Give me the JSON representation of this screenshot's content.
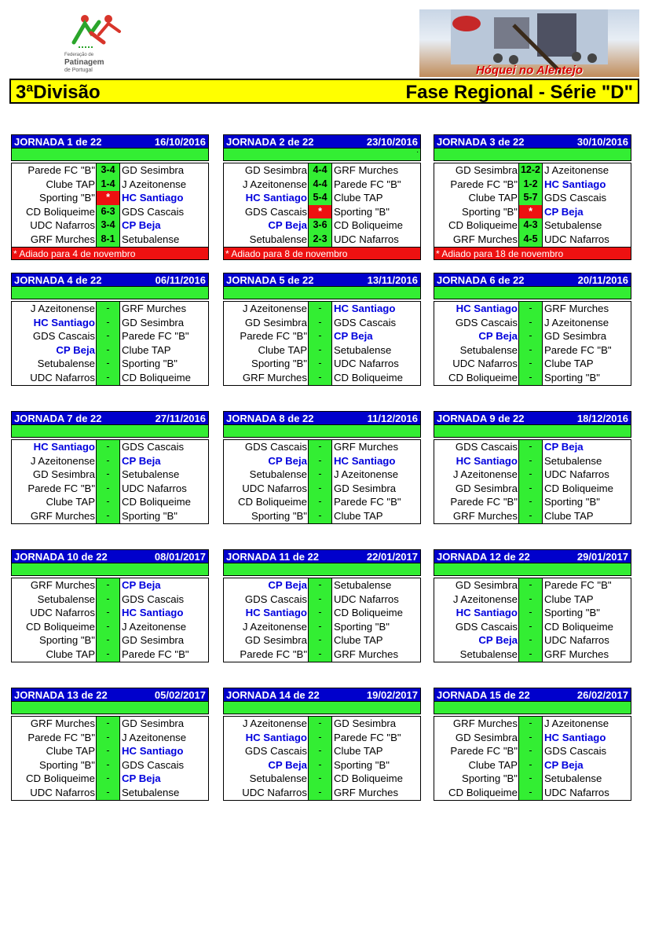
{
  "federation_logo": {
    "line1": "Federação de",
    "line2": "Patinagem",
    "line3": "de Portugal"
  },
  "banner": {
    "title": "Hóquei no Alentejo"
  },
  "title_bar": {
    "left": "3ªDivisão",
    "right": "Fase Regional - Série \"D\""
  },
  "colors": {
    "header_blue": "#0000cc",
    "green": "#33ee33",
    "red": "#ee1111",
    "team_highlight": "#0000dd",
    "title_yellow": "#ffff00"
  },
  "highlight_team": "HC Santiago|CP Beja",
  "rounds": [
    {
      "label": "JORNADA 1 de 22",
      "date": "16/10/2016",
      "note": "* Adiado para 4 de novembro",
      "games": [
        {
          "home": "Parede FC \"B\"",
          "score": "3-4",
          "away": "GD Sesimbra"
        },
        {
          "home": "Clube TAP",
          "score": "1-4",
          "away": "J Azeitonense"
        },
        {
          "home": "Sporting \"B\"",
          "score": "*",
          "away": "HC Santiago"
        },
        {
          "home": "CD Boliqueime",
          "score": "6-3",
          "away": "GDS Cascais"
        },
        {
          "home": "UDC Nafarros",
          "score": "3-4",
          "away": "CP Beja"
        },
        {
          "home": "GRF Murches",
          "score": "8-1",
          "away": "Setubalense"
        }
      ]
    },
    {
      "label": "JORNADA 2 de 22",
      "date": "23/10/2016",
      "note": "* Adiado para 8 de novembro",
      "dot": ".",
      "games": [
        {
          "home": "GD Sesimbra",
          "score": "4-4",
          "away": "GRF Murches"
        },
        {
          "home": "J Azeitonense",
          "score": "4-4",
          "away": "Parede FC \"B\""
        },
        {
          "home": "HC Santiago",
          "score": "5-4",
          "away": "Clube TAP"
        },
        {
          "home": "GDS Cascais",
          "score": "*",
          "away": "Sporting \"B\""
        },
        {
          "home": "CP Beja",
          "score": "3-6",
          "away": "CD Boliqueime"
        },
        {
          "home": "Setubalense",
          "score": "2-3",
          "away": "UDC Nafarros"
        }
      ]
    },
    {
      "label": "JORNADA 3 de 22",
      "date": "30/10/2016",
      "note": "* Adiado para 18 de novembro",
      "games": [
        {
          "home": "GD Sesimbra",
          "score": "12-2",
          "away": "J Azeitonense"
        },
        {
          "home": "Parede FC \"B\"",
          "score": "1-2",
          "away": "HC Santiago"
        },
        {
          "home": "Clube TAP",
          "score": "5-7",
          "away": "GDS Cascais"
        },
        {
          "home": "Sporting \"B\"",
          "score": "*",
          "away": "CP Beja"
        },
        {
          "home": "CD Boliqueime",
          "score": "4-3",
          "away": "Setubalense"
        },
        {
          "home": "GRF Murches",
          "score": "4-5",
          "away": "UDC Nafarros"
        }
      ]
    },
    {
      "label": "JORNADA 4 de 22",
      "date": "06/11/2016",
      "games": [
        {
          "home": "J Azeitonense",
          "score": "-",
          "away": "GRF Murches"
        },
        {
          "home": "HC Santiago",
          "score": "-",
          "away": "GD Sesimbra"
        },
        {
          "home": "GDS Cascais",
          "score": "-",
          "away": "Parede FC \"B\""
        },
        {
          "home": "CP Beja",
          "score": "-",
          "away": "Clube TAP"
        },
        {
          "home": "Setubalense",
          "score": "-",
          "away": "Sporting \"B\""
        },
        {
          "home": "UDC Nafarros",
          "score": "-",
          "away": "CD Boliqueime"
        }
      ]
    },
    {
      "label": "JORNADA 5 de 22",
      "date": "13/11/2016",
      "games": [
        {
          "home": "J Azeitonense",
          "score": "-",
          "away": "HC Santiago"
        },
        {
          "home": "GD Sesimbra",
          "score": "-",
          "away": "GDS Cascais"
        },
        {
          "home": "Parede FC \"B\"",
          "score": "-",
          "away": "CP Beja"
        },
        {
          "home": "Clube TAP",
          "score": "-",
          "away": "Setubalense"
        },
        {
          "home": "Sporting \"B\"",
          "score": "-",
          "away": "UDC Nafarros"
        },
        {
          "home": "GRF Murches",
          "score": "-",
          "away": "CD Boliqueime"
        }
      ]
    },
    {
      "label": "JORNADA 6 de 22",
      "date": "20/11/2016",
      "games": [
        {
          "home": "HC Santiago",
          "score": "-",
          "away": "GRF Murches"
        },
        {
          "home": "GDS Cascais",
          "score": "-",
          "away": "J Azeitonense"
        },
        {
          "home": "CP Beja",
          "score": "-",
          "away": "GD Sesimbra"
        },
        {
          "home": "Setubalense",
          "score": "-",
          "away": "Parede FC \"B\""
        },
        {
          "home": "UDC Nafarros",
          "score": "-",
          "away": "Clube TAP"
        },
        {
          "home": "CD Boliqueime",
          "score": "-",
          "away": "Sporting \"B\""
        }
      ]
    },
    {
      "label": "JORNADA 7 de 22",
      "date": "27/11/2016",
      "games": [
        {
          "home": "HC Santiago",
          "score": "-",
          "away": "GDS Cascais"
        },
        {
          "home": "J Azeitonense",
          "score": "-",
          "away": "CP Beja"
        },
        {
          "home": "GD Sesimbra",
          "score": "-",
          "away": "Setubalense"
        },
        {
          "home": "Parede FC \"B\"",
          "score": "-",
          "away": "UDC Nafarros"
        },
        {
          "home": "Clube TAP",
          "score": "-",
          "away": "CD Boliqueime"
        },
        {
          "home": "GRF Murches",
          "score": "-",
          "away": "Sporting \"B\""
        }
      ]
    },
    {
      "label": "JORNADA 8 de 22",
      "date": "11/12/2016",
      "games": [
        {
          "home": "GDS Cascais",
          "score": "-",
          "away": "GRF Murches"
        },
        {
          "home": "CP Beja",
          "score": "-",
          "away": "HC Santiago"
        },
        {
          "home": "Setubalense",
          "score": "-",
          "away": "J Azeitonense"
        },
        {
          "home": "UDC Nafarros",
          "score": "-",
          "away": "GD Sesimbra"
        },
        {
          "home": "CD Boliqueime",
          "score": "-",
          "away": "Parede FC \"B\""
        },
        {
          "home": "Sporting \"B\"",
          "score": "-",
          "away": "Clube TAP"
        }
      ]
    },
    {
      "label": "JORNADA 9 de 22",
      "date": "18/12/2016",
      "games": [
        {
          "home": "GDS Cascais",
          "score": "-",
          "away": "CP Beja"
        },
        {
          "home": "HC Santiago",
          "score": "-",
          "away": "Setubalense"
        },
        {
          "home": "J Azeitonense",
          "score": "-",
          "away": "UDC Nafarros"
        },
        {
          "home": "GD Sesimbra",
          "score": "-",
          "away": "CD Boliqueime"
        },
        {
          "home": "Parede FC \"B\"",
          "score": "-",
          "away": "Sporting \"B\""
        },
        {
          "home": "GRF Murches",
          "score": "-",
          "away": "Clube TAP"
        }
      ]
    },
    {
      "label": "JORNADA 10 de 22",
      "date": "08/01/2017",
      "games": [
        {
          "home": "GRF Murches",
          "score": "-",
          "away": "CP Beja"
        },
        {
          "home": "Setubalense",
          "score": "-",
          "away": "GDS Cascais"
        },
        {
          "home": "UDC Nafarros",
          "score": "-",
          "away": "HC Santiago"
        },
        {
          "home": "CD Boliqueime",
          "score": "-",
          "away": "J Azeitonense"
        },
        {
          "home": "Sporting \"B\"",
          "score": "-",
          "away": "GD Sesimbra"
        },
        {
          "home": "Clube TAP",
          "score": "-",
          "away": "Parede FC \"B\""
        }
      ]
    },
    {
      "label": "JORNADA 11 de 22",
      "date": "22/01/2017",
      "games": [
        {
          "home": "CP Beja",
          "score": "-",
          "away": "Setubalense"
        },
        {
          "home": "GDS Cascais",
          "score": "-",
          "away": "UDC Nafarros"
        },
        {
          "home": "HC Santiago",
          "score": "-",
          "away": "CD Boliqueime"
        },
        {
          "home": "J Azeitonense",
          "score": "-",
          "away": "Sporting \"B\""
        },
        {
          "home": "GD Sesimbra",
          "score": "-",
          "away": "Clube TAP"
        },
        {
          "home": "Parede FC \"B\"",
          "score": "-",
          "away": "GRF Murches"
        }
      ]
    },
    {
      "label": "JORNADA 12 de 22",
      "date": "29/01/2017",
      "games": [
        {
          "home": "GD Sesimbra",
          "score": "-",
          "away": "Parede FC \"B\""
        },
        {
          "home": "J Azeitonense",
          "score": "-",
          "away": "Clube TAP"
        },
        {
          "home": "HC Santiago",
          "score": "-",
          "away": "Sporting \"B\""
        },
        {
          "home": "GDS Cascais",
          "score": "-",
          "away": "CD Boliqueime"
        },
        {
          "home": "CP Beja",
          "score": "-",
          "away": "UDC Nafarros"
        },
        {
          "home": "Setubalense",
          "score": "-",
          "away": "GRF Murches"
        }
      ]
    },
    {
      "label": "JORNADA 13 de 22",
      "date": "05/02/2017",
      "games": [
        {
          "home": "GRF Murches",
          "score": "-",
          "away": "GD Sesimbra"
        },
        {
          "home": "Parede FC \"B\"",
          "score": "-",
          "away": "J Azeitonense"
        },
        {
          "home": "Clube TAP",
          "score": "-",
          "away": "HC Santiago"
        },
        {
          "home": "Sporting \"B\"",
          "score": "-",
          "away": "GDS Cascais"
        },
        {
          "home": "CD Boliqueime",
          "score": "-",
          "away": "CP Beja"
        },
        {
          "home": "UDC Nafarros",
          "score": "-",
          "away": "Setubalense"
        }
      ]
    },
    {
      "label": "JORNADA 14 de 22",
      "date": "19/02/2017",
      "games": [
        {
          "home": "J Azeitonense",
          "score": "-",
          "away": "GD Sesimbra"
        },
        {
          "home": "HC Santiago",
          "score": "-",
          "away": "Parede FC \"B\""
        },
        {
          "home": "GDS Cascais",
          "score": "-",
          "away": "Clube TAP"
        },
        {
          "home": "CP Beja",
          "score": "-",
          "away": "Sporting \"B\""
        },
        {
          "home": "Setubalense",
          "score": "-",
          "away": "CD Boliqueime"
        },
        {
          "home": "UDC Nafarros",
          "score": "-",
          "away": "GRF Murches"
        }
      ]
    },
    {
      "label": "JORNADA 15 de 22",
      "date": "26/02/2017",
      "games": [
        {
          "home": "GRF Murches",
          "score": "-",
          "away": "J Azeitonense"
        },
        {
          "home": "GD Sesimbra",
          "score": "-",
          "away": "HC Santiago"
        },
        {
          "home": "Parede FC \"B\"",
          "score": "-",
          "away": "GDS Cascais"
        },
        {
          "home": "Clube TAP",
          "score": "-",
          "away": "CP Beja"
        },
        {
          "home": "Sporting \"B\"",
          "score": "-",
          "away": "Setubalense"
        },
        {
          "home": "CD Boliqueime",
          "score": "-",
          "away": "UDC Nafarros"
        }
      ]
    }
  ]
}
